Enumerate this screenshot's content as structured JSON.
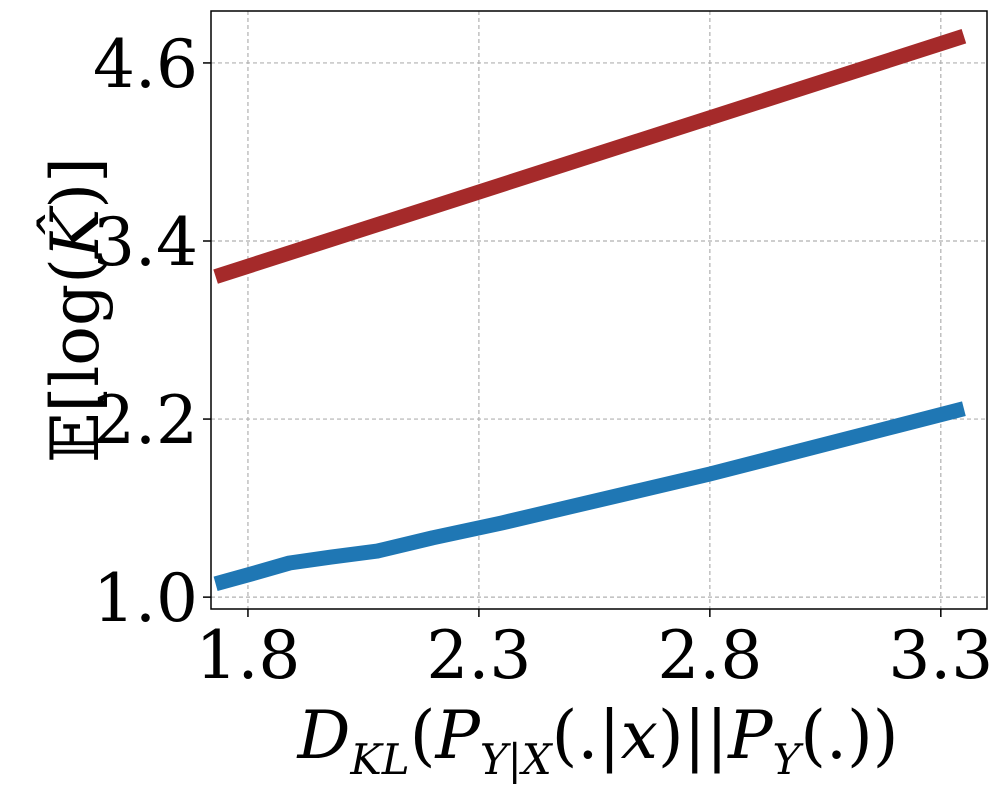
{
  "chart_data": {
    "type": "line",
    "xlabel": "D_KL(P_Y|X(.|x)||P_Y(.))",
    "ylabel": "E[log(K̂)]",
    "xlim": [
      1.72,
      3.4
    ],
    "ylim": [
      0.92,
      4.95
    ],
    "x_ticks": [
      "1.8",
      "2.3",
      "2.8",
      "3.3"
    ],
    "y_ticks": [
      "1.0",
      "2.2",
      "3.4",
      "4.6"
    ],
    "x_tick_values": [
      1.8,
      2.3,
      2.8,
      3.3
    ],
    "y_tick_values": [
      1.0,
      2.2,
      3.4,
      4.6
    ],
    "grid": true,
    "series": [
      {
        "color": "#a52a2a",
        "x": [
          1.73,
          3.35
        ],
        "y": [
          3.16,
          4.78
        ]
      },
      {
        "color": "#1f77b4",
        "x": [
          1.73,
          1.8,
          1.89,
          1.98,
          2.08,
          2.2,
          2.35,
          2.5,
          2.65,
          2.8,
          2.95,
          3.1,
          3.2,
          3.35
        ],
        "y": [
          1.09,
          1.15,
          1.23,
          1.27,
          1.31,
          1.4,
          1.5,
          1.61,
          1.72,
          1.83,
          1.95,
          2.07,
          2.15,
          2.27
        ]
      }
    ]
  }
}
